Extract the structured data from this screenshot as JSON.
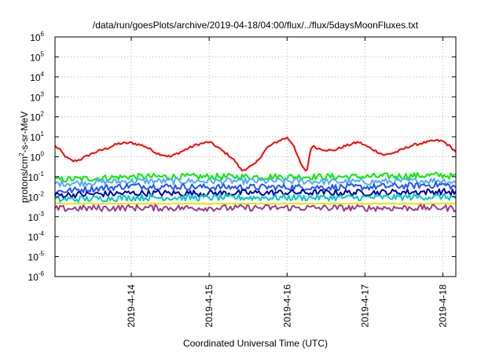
{
  "chart_data": {
    "type": "line",
    "title": "/data/run/goesPlots/archive/2019-04-18/04:00/flux/../flux/5daysMoonFluxes.txt",
    "xlabel": "Coordinated Universal Time (UTC)",
    "ylabel": {
      "pre": "protons/cm",
      "sup": "2",
      "post": "-s-sr-MeV"
    },
    "y_scale": "log",
    "ylim": [
      1e-06,
      1000000.0
    ],
    "y_ticks": [
      {
        "base": "10",
        "exp": "-6"
      },
      {
        "base": "10",
        "exp": "-5"
      },
      {
        "base": "10",
        "exp": "-4"
      },
      {
        "base": "10",
        "exp": "-3"
      },
      {
        "base": "10",
        "exp": "-2"
      },
      {
        "base": "10",
        "exp": "-1"
      },
      {
        "base": "10",
        "exp": "0"
      },
      {
        "base": "10",
        "exp": "1"
      },
      {
        "base": "10",
        "exp": "2"
      },
      {
        "base": "10",
        "exp": "3"
      },
      {
        "base": "10",
        "exp": "4"
      },
      {
        "base": "10",
        "exp": "5"
      },
      {
        "base": "10",
        "exp": "6"
      }
    ],
    "x_range": [
      "2019-04-13 00:30",
      "2019-04-18 04:00"
    ],
    "x_ticks": [
      "2019-4-14",
      "2019-4-15",
      "2019-4-16",
      "2019-4-17",
      "2019-4-18"
    ],
    "grid": true,
    "series": [
      {
        "color": "#ff0000",
        "x": [
          "2019-04-13 00:30",
          "2019-04-13 02:00",
          "2019-04-13 04:00",
          "2019-04-13 06:00",
          "2019-04-13 08:00",
          "2019-04-13 12:00",
          "2019-04-13 16:00",
          "2019-04-13 20:00",
          "2019-04-14 00:00",
          "2019-04-14 04:00",
          "2019-04-14 08:00",
          "2019-04-14 12:00",
          "2019-04-14 16:00",
          "2019-04-14 20:00",
          "2019-04-15 00:00",
          "2019-04-15 02:00",
          "2019-04-15 04:00",
          "2019-04-15 06:00",
          "2019-04-15 08:00",
          "2019-04-15 10:00",
          "2019-04-15 14:00",
          "2019-04-15 18:00",
          "2019-04-15 22:00",
          "2019-04-16 00:00",
          "2019-04-16 02:00",
          "2019-04-16 04:00",
          "2019-04-16 06:00",
          "2019-04-16 06:30",
          "2019-04-16 07:30",
          "2019-04-16 10:00",
          "2019-04-16 14:00",
          "2019-04-16 18:00",
          "2019-04-16 22:00",
          "2019-04-17 02:00",
          "2019-04-17 06:00",
          "2019-04-17 10:00",
          "2019-04-17 14:00",
          "2019-04-17 18:00",
          "2019-04-17 22:00",
          "2019-04-18 00:00",
          "2019-04-18 02:00",
          "2019-04-18 04:00"
        ],
        "y": [
          3.5,
          2.2,
          0.9,
          0.6,
          0.7,
          1.5,
          2.5,
          4.5,
          5.0,
          3.5,
          1.5,
          1.0,
          2.0,
          4.0,
          5.5,
          3.5,
          2.0,
          1.2,
          0.6,
          0.2,
          0.4,
          3.0,
          7.0,
          9.0,
          4.0,
          0.5,
          0.15,
          0.5,
          3.5,
          2.5,
          2.0,
          3.5,
          5.5,
          2.5,
          1.2,
          1.8,
          3.5,
          5.0,
          6.5,
          6.0,
          3.5,
          1.8
        ]
      },
      {
        "color": "#00ee00",
        "x": [
          "2019-04-13 00:30",
          "2019-04-14 00:00",
          "2019-04-15 00:00",
          "2019-04-16 00:00",
          "2019-04-17 00:00",
          "2019-04-18 00:00",
          "2019-04-18 04:00"
        ],
        "y": [
          0.07,
          0.1,
          0.1,
          0.1,
          0.1,
          0.12,
          0.1
        ]
      },
      {
        "color": "#55aaff",
        "x": [
          "2019-04-13 00:30",
          "2019-04-14 00:00",
          "2019-04-15 00:00",
          "2019-04-16 00:00",
          "2019-04-17 00:00",
          "2019-04-18 00:00",
          "2019-04-18 04:00"
        ],
        "y": [
          0.045,
          0.06,
          0.06,
          0.06,
          0.055,
          0.065,
          0.05
        ]
      },
      {
        "color": "#1f55ff",
        "x": [
          "2019-04-13 00:30",
          "2019-04-14 00:00",
          "2019-04-15 00:00",
          "2019-04-16 00:00",
          "2019-04-17 00:00",
          "2019-04-18 00:00",
          "2019-04-18 04:00"
        ],
        "y": [
          0.018,
          0.035,
          0.03,
          0.03,
          0.03,
          0.04,
          0.03
        ]
      },
      {
        "color": "#0000aa",
        "x": [
          "2019-04-13 00:30",
          "2019-04-14 00:00",
          "2019-04-15 00:00",
          "2019-04-16 00:00",
          "2019-04-17 00:00",
          "2019-04-18 00:00",
          "2019-04-18 04:00"
        ],
        "y": [
          0.012,
          0.015,
          0.015,
          0.016,
          0.016,
          0.018,
          0.016
        ]
      },
      {
        "color": "#00c8c8",
        "x": [
          "2019-04-13 00:30",
          "2019-04-14 00:00",
          "2019-04-15 00:00",
          "2019-04-16 00:00",
          "2019-04-17 00:00",
          "2019-04-18 00:00",
          "2019-04-18 04:00"
        ],
        "y": [
          0.007,
          0.009,
          0.009,
          0.009,
          0.009,
          0.01,
          0.009
        ]
      },
      {
        "color": "#e6e600",
        "x": [
          "2019-04-13 00:30",
          "2019-04-14 00:00",
          "2019-04-15 00:00",
          "2019-04-16 00:00",
          "2019-04-17 00:00",
          "2019-04-18 00:00",
          "2019-04-18 04:00"
        ],
        "y": [
          0.0045,
          0.0045,
          0.0045,
          0.0045,
          0.0045,
          0.0045,
          0.0045
        ]
      },
      {
        "color": "#9b3a8c",
        "x": [
          "2019-04-13 00:30",
          "2019-04-14 00:00",
          "2019-04-15 00:00",
          "2019-04-16 00:00",
          "2019-04-17 00:00",
          "2019-04-18 00:00",
          "2019-04-18 04:00"
        ],
        "y": [
          0.0025,
          0.0028,
          0.0027,
          0.0028,
          0.0027,
          0.0028,
          0.0025
        ]
      }
    ]
  }
}
